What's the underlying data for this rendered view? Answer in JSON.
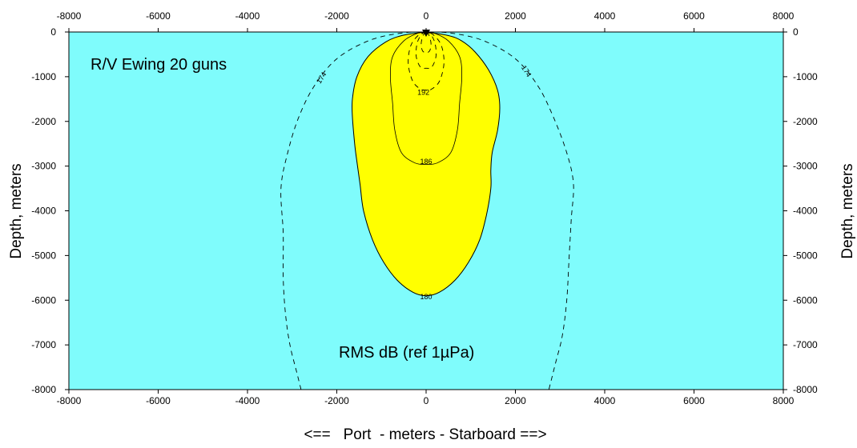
{
  "chart_data": {
    "type": "contour",
    "title": "",
    "annotations": {
      "vessel": "R/V Ewing 20 guns",
      "units": "RMS dB (ref 1µPa)"
    },
    "xlabel": "<==   Port  - meters - Starboard ==>",
    "ylabel": "Depth, meters",
    "xlim": [
      -8000,
      8000
    ],
    "ylim": [
      -8000,
      0
    ],
    "xticks": [
      "-8000",
      "-6000",
      "-4000",
      "-2000",
      "0",
      "2000",
      "4000",
      "6000",
      "8000"
    ],
    "yticks": [
      "0",
      "-1000",
      "-2000",
      "-3000",
      "-4000",
      "-5000",
      "-6000",
      "-7000",
      "-8000"
    ],
    "colors": {
      "background": "#7ffcfc",
      "fill_180": "#ffff00"
    },
    "source_marker": {
      "x": 0,
      "y": 0
    },
    "contours": [
      {
        "level": "180",
        "filled": true,
        "style": "solid",
        "label_pos": {
          "x": 0,
          "y": -5920
        },
        "points": [
          [
            0,
            0
          ],
          [
            500,
            -80
          ],
          [
            800,
            -200
          ],
          [
            1100,
            -450
          ],
          [
            1400,
            -850
          ],
          [
            1600,
            -1300
          ],
          [
            1650,
            -1700
          ],
          [
            1600,
            -2200
          ],
          [
            1480,
            -2700
          ],
          [
            1450,
            -3100
          ],
          [
            1450,
            -3500
          ],
          [
            1350,
            -4100
          ],
          [
            1200,
            -4650
          ],
          [
            950,
            -5150
          ],
          [
            650,
            -5550
          ],
          [
            300,
            -5820
          ],
          [
            0,
            -5900
          ],
          [
            -300,
            -5820
          ],
          [
            -650,
            -5550
          ],
          [
            -950,
            -5150
          ],
          [
            -1200,
            -4650
          ],
          [
            -1400,
            -4000
          ],
          [
            -1480,
            -3400
          ],
          [
            -1550,
            -2900
          ],
          [
            -1600,
            -2500
          ],
          [
            -1650,
            -1900
          ],
          [
            -1650,
            -1500
          ],
          [
            -1550,
            -1000
          ],
          [
            -1300,
            -550
          ],
          [
            -900,
            -220
          ],
          [
            -500,
            -70
          ],
          [
            0,
            0
          ]
        ]
      },
      {
        "level": "174",
        "filled": false,
        "style": "dashed",
        "label_pos": {
          "x": -2300,
          "y": -1000
        },
        "label_pos2": {
          "x": 2200,
          "y": -850
        },
        "points": [
          [
            -2800,
            -8000
          ],
          [
            -2900,
            -7600
          ],
          [
            -3050,
            -7000
          ],
          [
            -3150,
            -6300
          ],
          [
            -3200,
            -5500
          ],
          [
            -3200,
            -4500
          ],
          [
            -3250,
            -3500
          ],
          [
            -3100,
            -2700
          ],
          [
            -2850,
            -1900
          ],
          [
            -2500,
            -1200
          ],
          [
            -2000,
            -600
          ],
          [
            -1300,
            -200
          ],
          [
            -600,
            -30
          ],
          [
            0,
            0
          ],
          [
            600,
            -30
          ],
          [
            1300,
            -200
          ],
          [
            2000,
            -600
          ],
          [
            2500,
            -1200
          ],
          [
            2850,
            -1900
          ],
          [
            3150,
            -2700
          ],
          [
            3300,
            -3400
          ],
          [
            3250,
            -4200
          ],
          [
            3200,
            -5100
          ],
          [
            3150,
            -6000
          ],
          [
            3050,
            -6800
          ],
          [
            2900,
            -7400
          ],
          [
            2750,
            -8000
          ]
        ]
      },
      {
        "level": "186",
        "filled": false,
        "style": "solid-thin",
        "label_pos": {
          "x": 0,
          "y": -2900
        },
        "points": [
          [
            0,
            0
          ],
          [
            -200,
            -30
          ],
          [
            -500,
            -200
          ],
          [
            -750,
            -550
          ],
          [
            -800,
            -1000
          ],
          [
            -750,
            -1600
          ],
          [
            -700,
            -2200
          ],
          [
            -550,
            -2700
          ],
          [
            -250,
            -2930
          ],
          [
            0,
            -2960
          ],
          [
            250,
            -2930
          ],
          [
            550,
            -2700
          ],
          [
            700,
            -2200
          ],
          [
            750,
            -1600
          ],
          [
            800,
            -1000
          ],
          [
            750,
            -550
          ],
          [
            500,
            -200
          ],
          [
            200,
            -30
          ],
          [
            0,
            0
          ]
        ]
      },
      {
        "level": "192",
        "filled": false,
        "style": "dashed",
        "label_pos": {
          "x": -60,
          "y": -1350
        },
        "points": [
          [
            0,
            0
          ],
          [
            -160,
            -60
          ],
          [
            -340,
            -300
          ],
          [
            -400,
            -700
          ],
          [
            -300,
            -1100
          ],
          [
            -120,
            -1280
          ],
          [
            0,
            -1300
          ],
          [
            120,
            -1280
          ],
          [
            300,
            -1100
          ],
          [
            400,
            -700
          ],
          [
            340,
            -300
          ],
          [
            160,
            -60
          ],
          [
            0,
            0
          ]
        ]
      },
      {
        "level": "",
        "filled": false,
        "style": "dashed",
        "points": [
          [
            0,
            0
          ],
          [
            -100,
            -50
          ],
          [
            -200,
            -250
          ],
          [
            -220,
            -550
          ],
          [
            -130,
            -780
          ],
          [
            0,
            -810
          ],
          [
            130,
            -780
          ],
          [
            220,
            -550
          ],
          [
            200,
            -250
          ],
          [
            100,
            -50
          ],
          [
            0,
            0
          ]
        ]
      },
      {
        "level": "",
        "filled": false,
        "style": "dashed",
        "points": [
          [
            0,
            0
          ],
          [
            -60,
            -60
          ],
          [
            -110,
            -250
          ],
          [
            -80,
            -420
          ],
          [
            0,
            -460
          ],
          [
            80,
            -420
          ],
          [
            110,
            -250
          ],
          [
            60,
            -60
          ],
          [
            0,
            0
          ]
        ]
      }
    ]
  }
}
